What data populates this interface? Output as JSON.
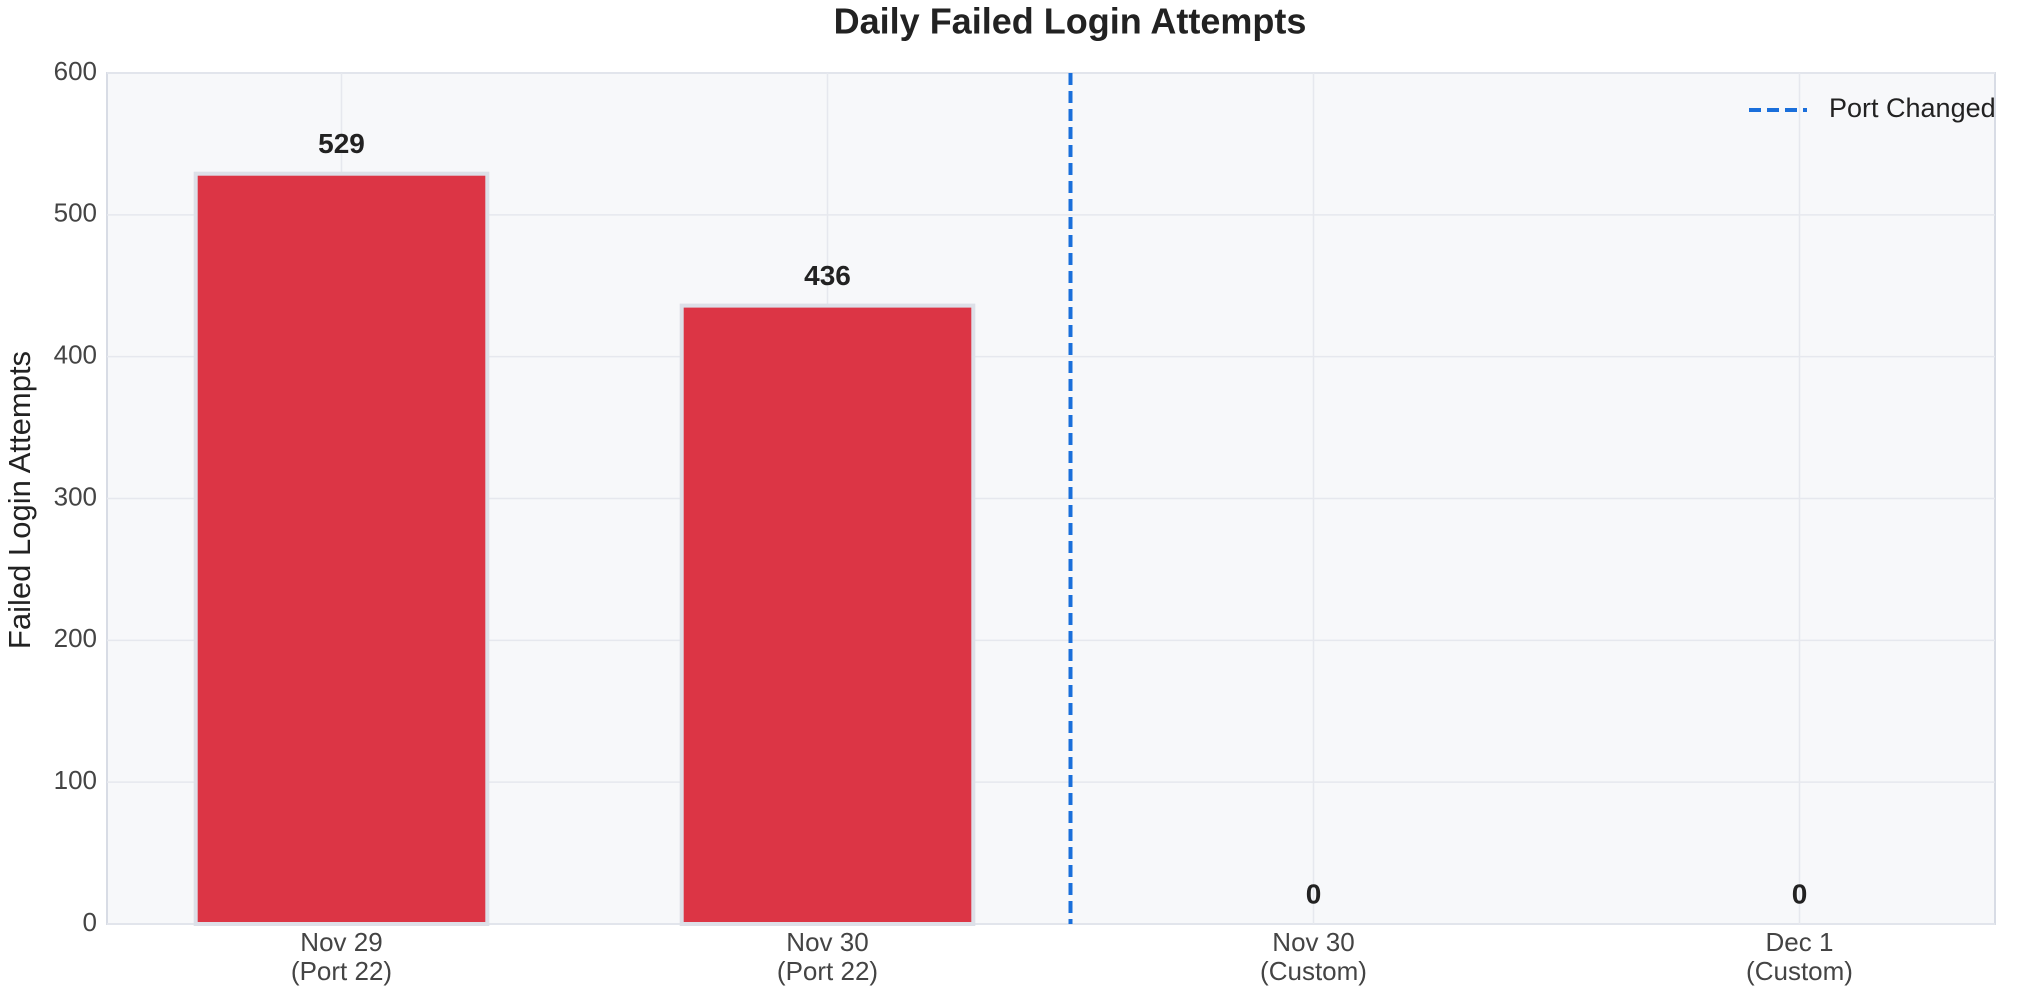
{
  "chart_data": {
    "type": "bar",
    "title": "Daily Failed Login Attempts",
    "ylabel": "Failed Login Attempts",
    "categories": [
      "Nov 29\n(Port 22)",
      "Nov 30\n(Port 22)",
      "Nov 30\n(Custom)",
      "Dec 1\n(Custom)"
    ],
    "values": [
      529,
      436,
      0,
      0
    ],
    "color": "#dc3545",
    "edgecolor": "#dde0e8",
    "ylim": [
      0,
      600
    ],
    "yticks": [
      0,
      100,
      200,
      300,
      400,
      500,
      600
    ],
    "grid": true,
    "vline": {
      "name": "Port Changed",
      "color": "#1a6fdb",
      "x": 1.5
    },
    "legend": "upper right"
  }
}
